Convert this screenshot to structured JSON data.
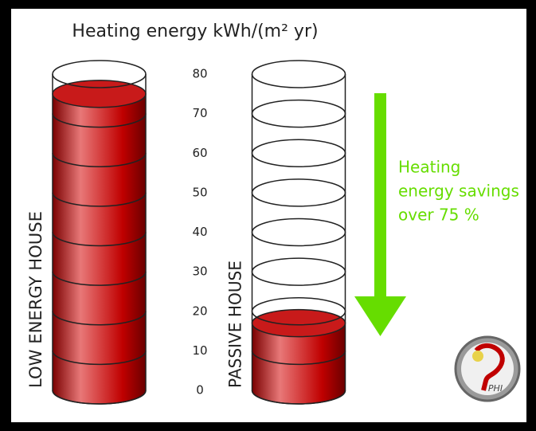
{
  "chart_data": {
    "type": "cylinder",
    "title": "Heating energy kWh/(m² yr)",
    "categories": [
      "LOW ENERGY HOUSE",
      "PASSIVE HOUSE"
    ],
    "values": [
      75,
      17
    ],
    "color": "#c00000",
    "ylim": [
      0,
      80
    ],
    "yticks": [
      0,
      10,
      20,
      30,
      40,
      50,
      60,
      70,
      80
    ],
    "annotation": [
      "Heating",
      "energy savings",
      "over 75 %"
    ],
    "annotation_color": "#66dd00",
    "logo": "PHI"
  }
}
